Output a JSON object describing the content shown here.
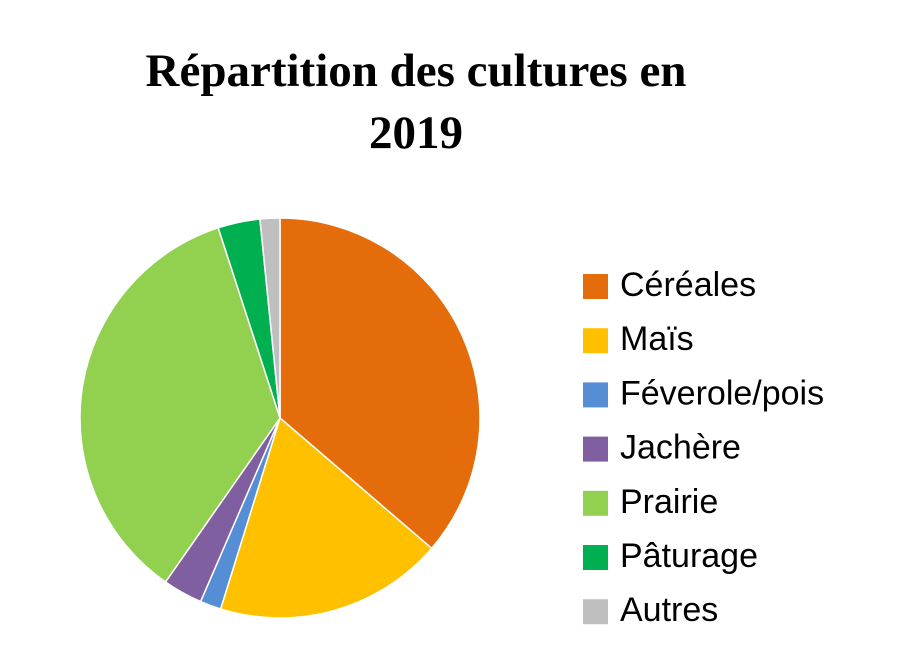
{
  "chart_data": {
    "type": "pie",
    "title": "Répartition des cultures en 2019",
    "categories": [
      "Céréales",
      "Maïs",
      "Féverole/pois",
      "Jachère",
      "Prairie",
      "Pâturage",
      "Autres"
    ],
    "values": [
      36.3,
      18.5,
      1.7,
      3.2,
      35.3,
      3.4,
      1.6
    ],
    "colors": [
      "#e46c0a",
      "#ffc000",
      "#558ed5",
      "#7f5f9f",
      "#92d050",
      "#00b050",
      "#bfbfbf"
    ],
    "legend": "right"
  }
}
